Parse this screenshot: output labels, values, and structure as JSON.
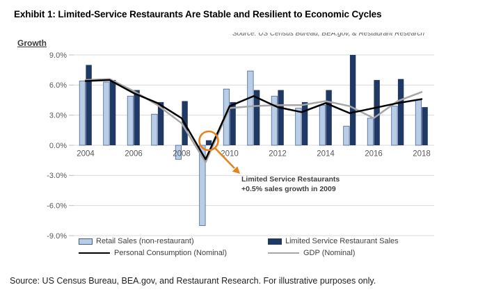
{
  "title": "Exhibit 1: Limited-Service Restaurants Are Stable and Resilient to Economic Cycles",
  "chart_source_note": "Source: US Census Bureau, BEA.gov, & Restaurant Research",
  "footer_note": "Source: US Census Bureau, BEA.gov, and Restaurant Research. For illustrative purposes only.",
  "annotation": {
    "line1": "Limited Service Restaurants",
    "line2": "+0.5% sales growth in 2009"
  },
  "legend": {
    "retail": "Retail Sales (non-restaurant)",
    "lsr": "Limited Service Restaurant Sales",
    "pce": "Personal Consumption (Nominal)",
    "gdp": "GDP (Nominal)"
  },
  "colors": {
    "retail_fill": "#b9cde6",
    "retail_border": "#3f5e8e",
    "lsr_fill": "#1f3864",
    "pce_line": "#000000",
    "gdp_line": "#a6a6a6",
    "grid": "#d9d9d9",
    "tick": "#bfbfbf",
    "axis_text": "#595959",
    "orange": "#e8821e",
    "annotation_text": "#404040"
  },
  "chart_data": {
    "type": "combo (bar + line)",
    "title": "",
    "xlabel": "",
    "ylabel": "Growth",
    "x": [
      2004,
      2005,
      2006,
      2007,
      2008,
      2009,
      2010,
      2011,
      2012,
      2013,
      2014,
      2015,
      2016,
      2017,
      2018
    ],
    "x_tick_labels": [
      "2004",
      "2006",
      "2008",
      "2010",
      "2012",
      "2014",
      "2016",
      "2018"
    ],
    "ylim": [
      -9,
      9
    ],
    "ytick_values": [
      9,
      6,
      3,
      0,
      -3,
      -6,
      -9
    ],
    "ytick_labels": [
      "9.0%",
      "6.0%",
      "3.0%",
      "0.0%",
      "-3.0%",
      "-6.0%",
      "-9.0%"
    ],
    "grid": "horizontal",
    "legend_position": "bottom",
    "series": [
      {
        "name": "Retail Sales (non-restaurant)",
        "kind": "bar",
        "color": "#b9cde6",
        "values": [
          6.4,
          6.3,
          4.9,
          3.1,
          -1.4,
          -8.0,
          5.6,
          7.4,
          4.9,
          3.7,
          4.0,
          1.9,
          2.7,
          3.9,
          4.5
        ]
      },
      {
        "name": "Limited Service Restaurant Sales",
        "kind": "bar",
        "color": "#1f3864",
        "values": [
          8.0,
          6.5,
          5.5,
          4.3,
          4.4,
          0.5,
          4.3,
          5.5,
          5.5,
          4.3,
          5.5,
          9.0,
          6.5,
          6.6,
          3.8
        ]
      },
      {
        "name": "Personal Consumption (Nominal)",
        "kind": "line",
        "color": "#000000",
        "values": [
          6.4,
          6.5,
          5.2,
          4.2,
          2.7,
          -1.4,
          3.9,
          4.9,
          3.8,
          3.3,
          4.2,
          3.2,
          3.7,
          4.2,
          4.6
        ]
      },
      {
        "name": "GDP (Nominal)",
        "kind": "line",
        "color": "#a6a6a6",
        "values": [
          6.5,
          6.6,
          5.4,
          4.0,
          2.2,
          -1.7,
          3.7,
          3.9,
          4.0,
          4.0,
          4.4,
          3.9,
          2.7,
          4.4,
          5.3
        ]
      }
    ],
    "annotation": {
      "text": "Limited Service Restaurants +0.5% sales growth in 2009",
      "highlighted_year": 2009,
      "highlighted_series": "Limited Service Restaurant Sales",
      "highlighted_value": 0.5
    }
  }
}
